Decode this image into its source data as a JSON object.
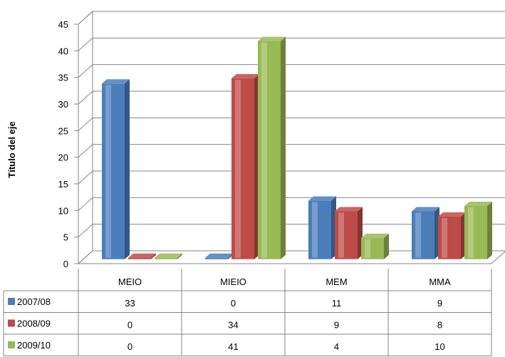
{
  "chart_data": {
    "type": "bar",
    "style": "3d-clustered-column-with-data-table",
    "ylabel": "Título del eje",
    "ylim": [
      0,
      45
    ],
    "ytick_step": 5,
    "yticks": [
      "0",
      "5",
      "10",
      "15",
      "20",
      "25",
      "30",
      "35",
      "40",
      "45"
    ],
    "grid": true,
    "legend_placement": "data-table-left",
    "categories": [
      "MEIO",
      "MIEIO",
      "MEM",
      "MMA"
    ],
    "series": [
      {
        "name": "2007/08",
        "values": [
          33,
          0,
          11,
          9
        ],
        "color": "#4a7ebb"
      },
      {
        "name": "2008/09",
        "values": [
          0,
          34,
          9,
          8
        ],
        "color": "#be4b48"
      },
      {
        "name": "2009/10",
        "values": [
          0,
          41,
          4,
          10
        ],
        "color": "#98b954"
      }
    ]
  }
}
